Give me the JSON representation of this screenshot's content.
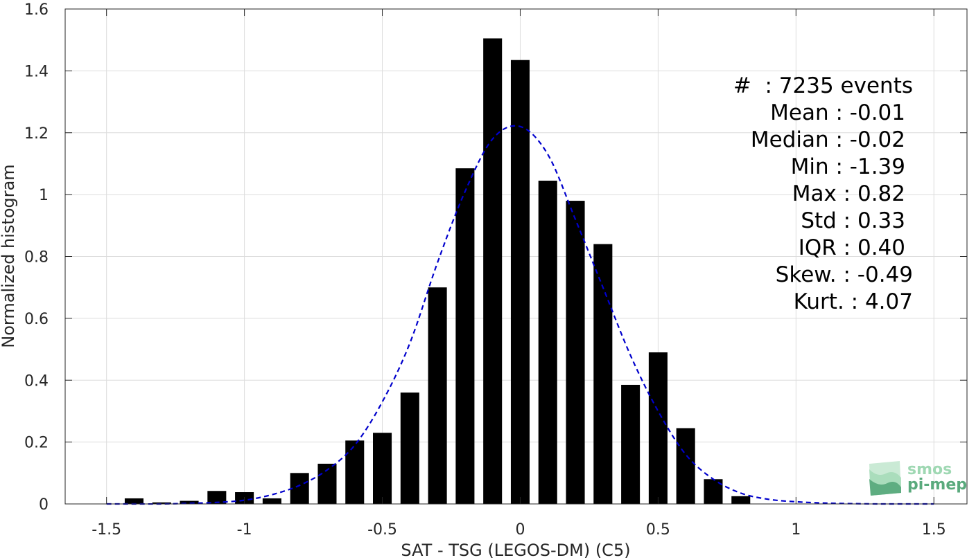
{
  "chart_data": {
    "type": "bar",
    "xlabel": "SAT - TSG (LEGOS-DM) (C5)",
    "ylabel": "Normalized histogram",
    "xlim": [
      -1.65,
      1.62
    ],
    "ylim": [
      0,
      1.6
    ],
    "xticks": [
      -1.5,
      -1,
      -0.5,
      0,
      0.5,
      1,
      1.5
    ],
    "xtick_labels": [
      "-1.5",
      "-1",
      "-0.5",
      "0",
      "0.5",
      "1",
      "1.5"
    ],
    "yticks": [
      0,
      0.2,
      0.4,
      0.6,
      0.8,
      1,
      1.2,
      1.4,
      1.6
    ],
    "ytick_labels": [
      "0",
      "0.2",
      "0.4",
      "0.6",
      "0.8",
      "1",
      "1.2",
      "1.4",
      "1.6"
    ],
    "grid": true,
    "bar_color": "#000000",
    "bar_width": 0.068,
    "x": [
      -1.4,
      -1.3,
      -1.2,
      -1.1,
      -1.0,
      -0.9,
      -0.8,
      -0.7,
      -0.6,
      -0.5,
      -0.4,
      -0.3,
      -0.2,
      -0.1,
      0.0,
      0.1,
      0.2,
      0.3,
      0.4,
      0.5,
      0.6,
      0.7,
      0.8
    ],
    "values": [
      0.018,
      0.005,
      0.01,
      0.042,
      0.038,
      0.018,
      0.1,
      0.13,
      0.205,
      0.23,
      0.36,
      0.7,
      1.085,
      1.505,
      1.435,
      1.045,
      0.98,
      0.84,
      0.385,
      0.49,
      0.245,
      0.08,
      0.025
    ],
    "fit": {
      "style": "dashed",
      "color": "#0000cc",
      "x": [
        -1.5,
        -1.4,
        -1.3,
        -1.2,
        -1.1,
        -1.0,
        -0.9,
        -0.8,
        -0.7,
        -0.6,
        -0.5,
        -0.4,
        -0.3,
        -0.2,
        -0.1,
        0.0,
        0.1,
        0.2,
        0.3,
        0.4,
        0.5,
        0.6,
        0.7,
        0.8,
        0.9,
        1.0,
        1.1,
        1.2,
        1.3,
        1.4,
        1.5
      ],
      "y": [
        0.0,
        0.0,
        0.0,
        0.002,
        0.005,
        0.012,
        0.03,
        0.06,
        0.11,
        0.19,
        0.33,
        0.52,
        0.78,
        1.01,
        1.18,
        1.22,
        1.13,
        0.92,
        0.7,
        0.48,
        0.3,
        0.16,
        0.08,
        0.035,
        0.015,
        0.007,
        0.003,
        0.001,
        0.0,
        0.0,
        0.0
      ]
    },
    "stats": [
      "#  : 7235 events",
      "Mean : -0.01",
      "Median : -0.02",
      "Min : -1.39",
      "Max : 0.82",
      "Std : 0.33",
      "IQR : 0.40",
      "Skew. : -0.49",
      "Kurt. : 4.07"
    ]
  },
  "logo": {
    "line1": "smos",
    "line2": "pi-mep",
    "color_light": "#9fd8b3",
    "color_dark": "#5aaa7d"
  }
}
